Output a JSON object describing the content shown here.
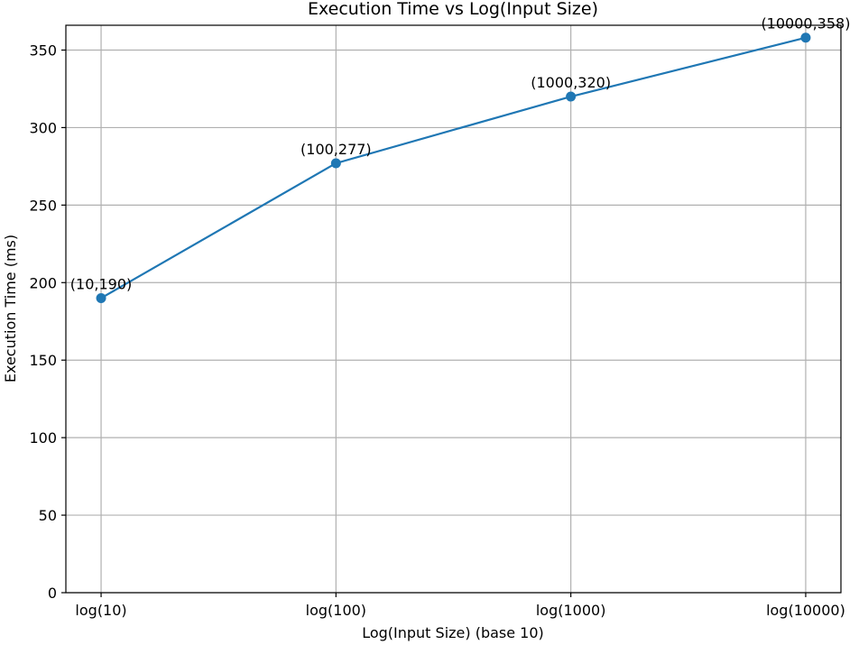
{
  "chart_data": {
    "type": "line",
    "title": "Execution Time vs Log(Input Size)",
    "xlabel": "Log(Input Size) (base 10)",
    "ylabel": "Execution Time (ms)",
    "categories": [
      "log(10)",
      "log(100)",
      "log(1000)",
      "log(10000)"
    ],
    "x": [
      10,
      100,
      1000,
      10000
    ],
    "x_scale": "log",
    "y": [
      190,
      277,
      320,
      358
    ],
    "point_labels": [
      "(10,190)",
      "(100,277)",
      "(1000,320)",
      "(10000,358)"
    ],
    "ylim": [
      0,
      366
    ],
    "yticks": [
      0,
      50,
      100,
      150,
      200,
      250,
      300,
      350
    ],
    "ytick_labels": [
      "0",
      "50",
      "100",
      "150",
      "200",
      "250",
      "300",
      "350"
    ],
    "grid": true,
    "marker": "circle",
    "colors": {
      "line": "#1f77b4",
      "grid": "#b0b0b0"
    }
  }
}
